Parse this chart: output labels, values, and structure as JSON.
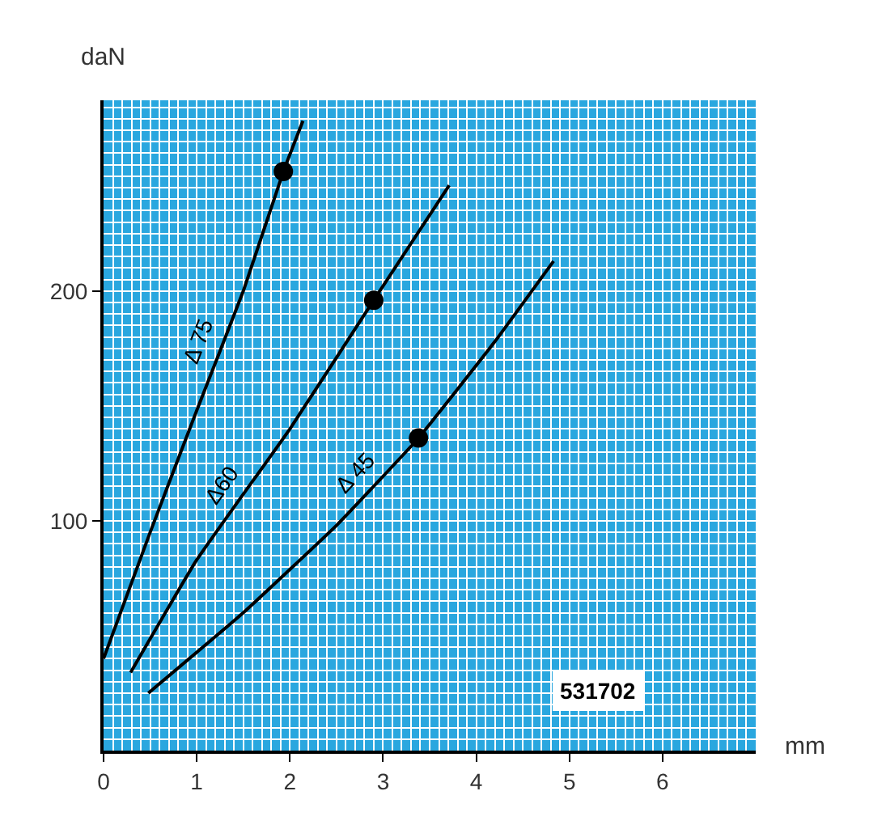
{
  "chart_data": {
    "type": "line",
    "xlabel": "mm",
    "ylabel": "daN",
    "xlim": [
      0,
      7
    ],
    "ylim": [
      0,
      283
    ],
    "xticks": [
      0,
      1,
      2,
      3,
      4,
      5,
      6
    ],
    "yticks": [
      100,
      200
    ],
    "grid": true,
    "legend": false,
    "line_style": "solid",
    "marker": "none",
    "series": [
      {
        "name": "Δ 75",
        "color": "#000000",
        "x": [
          0,
          0.5,
          1,
          1.5,
          1.93,
          2.14
        ],
        "values": [
          40,
          95,
          148,
          200,
          252,
          274
        ]
      },
      {
        "name": "Δ60",
        "color": "#000000",
        "x": [
          0.29,
          1,
          2,
          2.9,
          3.71
        ],
        "values": [
          34,
          83,
          140,
          196,
          246
        ]
      },
      {
        "name": "Δ 45",
        "color": "#000000",
        "x": [
          0.48,
          1.5,
          2.5,
          3.38,
          4.2,
          4.83
        ],
        "values": [
          25,
          60,
          98,
          136,
          178,
          213
        ]
      },
      {
        "type": "scatter",
        "marker": "circle",
        "color": "#000000",
        "x": [
          1.93,
          2.9,
          3.38
        ],
        "values": [
          252,
          196,
          136
        ]
      }
    ],
    "annotations": [
      "531702"
    ]
  }
}
